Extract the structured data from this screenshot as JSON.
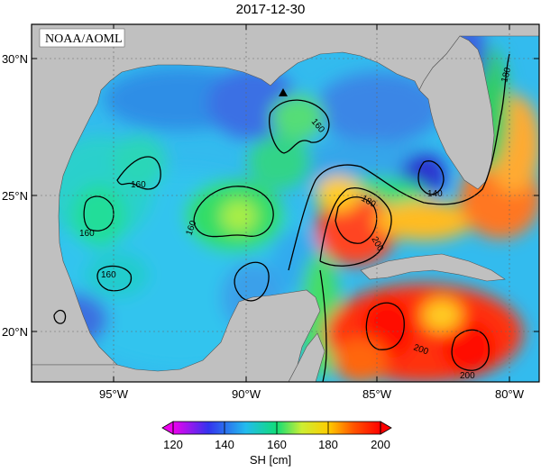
{
  "title": "2017-12-30",
  "source_label": "NOAA/AOML",
  "lat_ticks": [
    "20°N",
    "25°N",
    "30°N"
  ],
  "lon_ticks": [
    "95°W",
    "90°W",
    "85°W",
    "80°W"
  ],
  "contour_labels": [
    "160",
    "160",
    "160",
    "160",
    "160",
    "180",
    "180",
    "200",
    "200",
    "180",
    "140"
  ],
  "colorbar": {
    "label": "SH [cm]",
    "ticks": [
      "120",
      "140",
      "160",
      "180",
      "200"
    ],
    "stops": [
      "#ee00ee",
      "#3333ee",
      "#22bbee",
      "#11dd77",
      "#ccee33",
      "#ffcc00",
      "#ff5500",
      "#ff0000"
    ]
  },
  "colors": {
    "land": "#c0c0c0",
    "frame": "#000000"
  }
}
